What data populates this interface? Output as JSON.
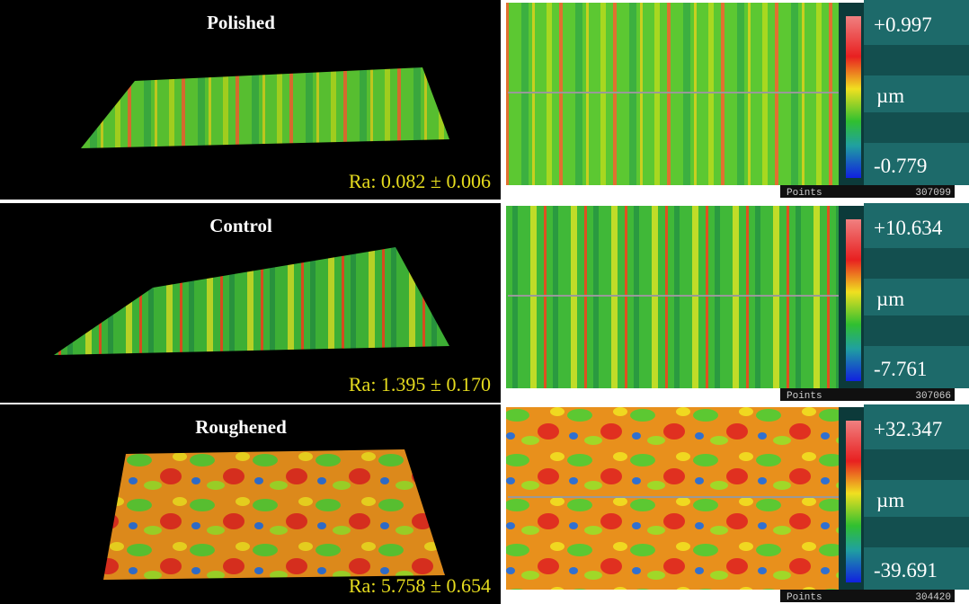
{
  "rows": [
    {
      "label": "Polished",
      "ra": "Ra: 0.082 ± 0.006",
      "max": "+0.997",
      "unit": "µm",
      "min": "-0.779",
      "points_label": "Points",
      "points": "307099"
    },
    {
      "label": "Control",
      "ra": "Ra: 1.395 ± 0.170",
      "max": "+10.634",
      "unit": "µm",
      "min": "-7.761",
      "points_label": "Points",
      "points": "307066"
    },
    {
      "label": "Roughened",
      "ra": "Ra: 5.758 ± 0.654",
      "max": "+32.347",
      "unit": "µm",
      "min": "-39.691",
      "points_label": "Points",
      "points": "304420"
    }
  ]
}
